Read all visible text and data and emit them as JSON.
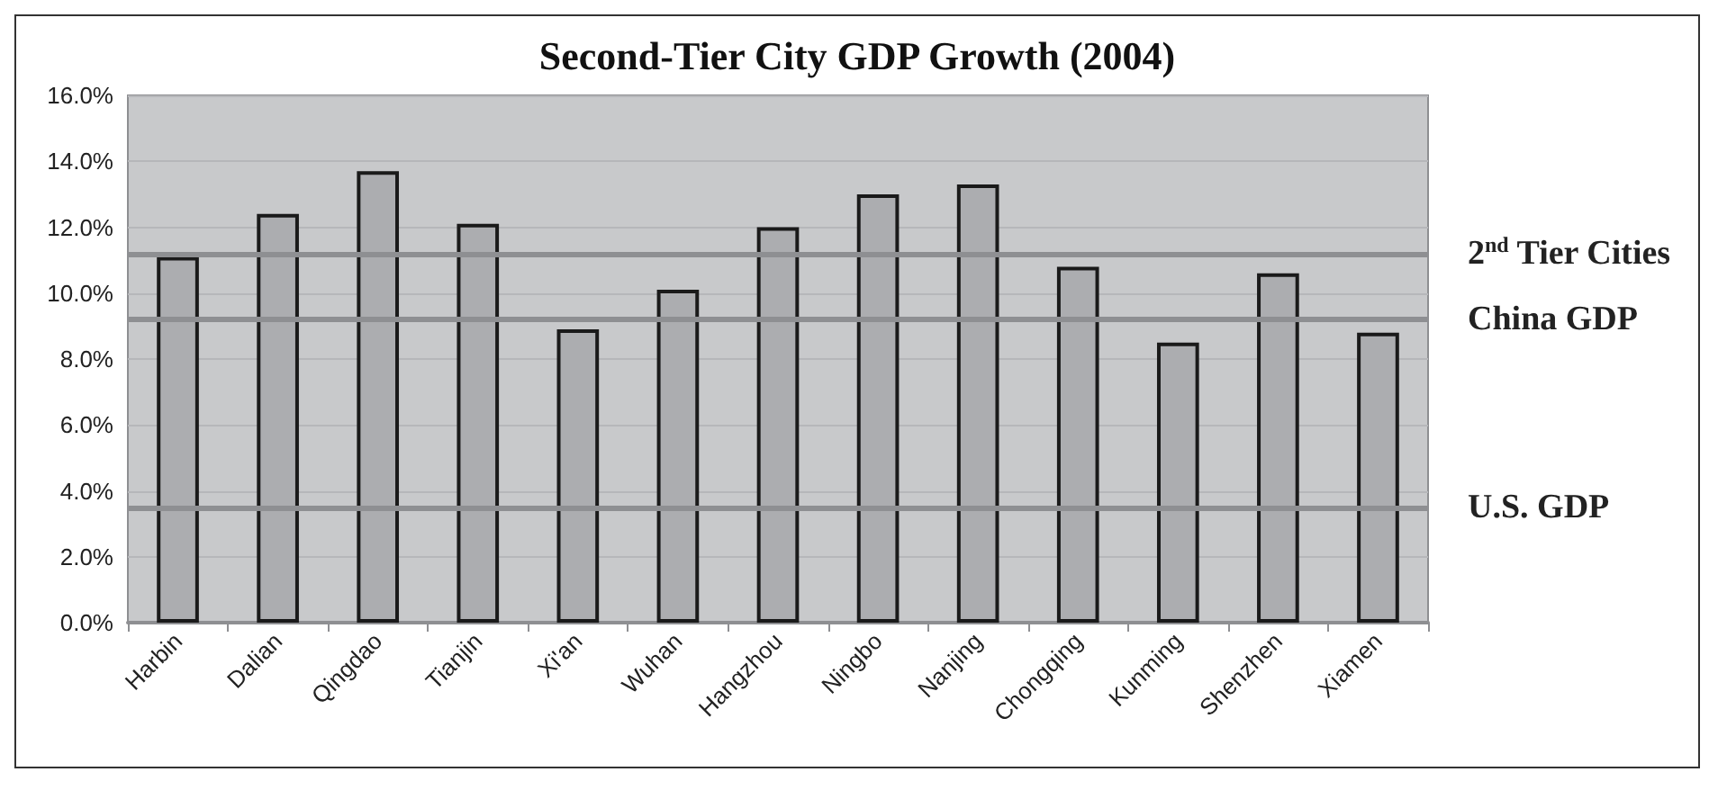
{
  "chart_data": {
    "type": "bar",
    "title": "Second-Tier City GDP Growth (2004)",
    "categories": [
      "Harbin",
      "Dalian",
      "Qingdao",
      "Tianjin",
      "Xi'an",
      "Wuhan",
      "Hangzhou",
      "Ningbo",
      "Nanjing",
      "Chongqing",
      "Kunming",
      "Shenzhen",
      "Xiamen"
    ],
    "values": [
      11.1,
      12.4,
      13.7,
      12.1,
      8.9,
      10.1,
      12.0,
      13.0,
      13.3,
      10.8,
      8.5,
      10.6,
      8.8
    ],
    "color": "#acadb0",
    "ylim": [
      0,
      16
    ],
    "yticks": [
      {
        "value": 0,
        "label": "0.0%"
      },
      {
        "value": 2,
        "label": "2.0%"
      },
      {
        "value": 4,
        "label": "4.0%"
      },
      {
        "value": 6,
        "label": "6.0%"
      },
      {
        "value": 8,
        "label": "8.0%"
      },
      {
        "value": 10,
        "label": "10.0%"
      },
      {
        "value": 12,
        "label": "12.0%"
      },
      {
        "value": 14,
        "label": "14.0%"
      },
      {
        "value": 16,
        "label": "16.0%"
      }
    ],
    "ref_lines": [
      {
        "axis": "y",
        "value": 11.2,
        "label": "2$^{nd}$ Tier Cities",
        "color": "#8e8f92"
      },
      {
        "axis": "y",
        "value": 9.2,
        "label": "China GDP",
        "color": "#8e8f92"
      },
      {
        "axis": "y",
        "value": 3.5,
        "label": "U.S. GDP",
        "color": "#8e8f92"
      }
    ],
    "grid": "y"
  }
}
